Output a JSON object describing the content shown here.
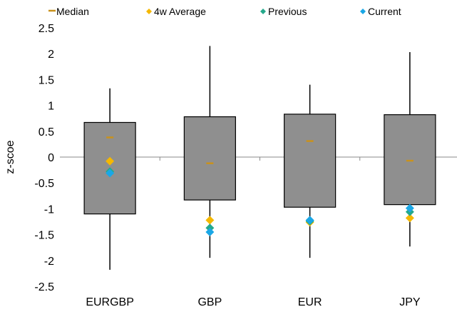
{
  "chart_data": {
    "type": "box",
    "ylabel": "z-scoe",
    "ylim": [
      -2.5,
      2.5
    ],
    "ytick_step": 0.5,
    "categories": [
      "EURGBP",
      "GBP",
      "EUR",
      "JPY"
    ],
    "legend_position": "top",
    "colors": {
      "box": "#8f8f8f",
      "median": "#c9921c",
      "avg4w": "#f5b800",
      "previous": "#25a98c",
      "current": "#1aa7e6",
      "axis": "#8a8a8a"
    },
    "legend": [
      {
        "key": "median",
        "label": "Median",
        "marker": "dash"
      },
      {
        "key": "avg4w",
        "label": "4w Average",
        "marker": "diamond"
      },
      {
        "key": "previous",
        "label": "Previous",
        "marker": "diamond"
      },
      {
        "key": "current",
        "label": "Current",
        "marker": "diamond"
      }
    ],
    "boxes": [
      {
        "category": "EURGBP",
        "min": -2.18,
        "q1": -1.1,
        "median": 0.38,
        "q3": 0.67,
        "max": 1.33,
        "avg4w": -0.08,
        "previous": -0.28,
        "current": -0.31
      },
      {
        "category": "GBP",
        "min": -1.95,
        "q1": -0.83,
        "median": -0.12,
        "q3": 0.78,
        "max": 2.15,
        "avg4w": -1.22,
        "previous": -1.37,
        "current": -1.45
      },
      {
        "category": "EUR",
        "min": -1.95,
        "q1": -0.97,
        "median": 0.31,
        "q3": 0.83,
        "max": 1.4,
        "avg4w": -1.26,
        "previous": -1.24,
        "current": -1.22
      },
      {
        "category": "JPY",
        "min": -1.73,
        "q1": -0.92,
        "median": -0.07,
        "q3": 0.82,
        "max": 2.03,
        "avg4w": -1.18,
        "previous": -1.06,
        "current": -0.99
      }
    ]
  }
}
